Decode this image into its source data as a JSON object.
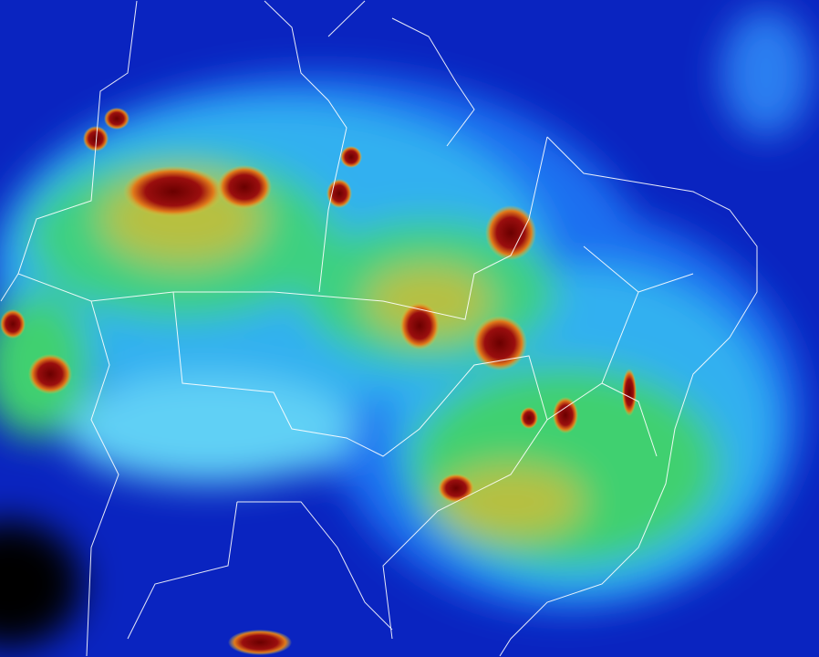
{
  "map": {
    "kind": "enhanced infrared satellite image",
    "colors": {
      "deep": "#0a1fb0",
      "blue": "#1c5ff0",
      "cyan": "#22b8f0",
      "light": "#6fe0f5",
      "green": "#2ed36a",
      "yellow": "#c8c83a",
      "orange": "#d86a1a",
      "red": "#8a0a0a",
      "space": "#000000",
      "borders": "#ffffff"
    }
  }
}
